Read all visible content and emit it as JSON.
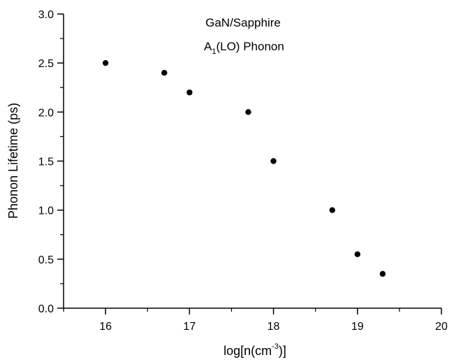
{
  "chart_data": {
    "type": "scatter",
    "title": "",
    "annotations": [
      {
        "text": "GaN/Sapphire"
      },
      {
        "main": "A",
        "sub": "1",
        "rest": "(LO) Phonon"
      }
    ],
    "xlabel": {
      "pre": "log[n(cm",
      "sup": "-3",
      "post": ")]"
    },
    "ylabel": "Phonon Lifetime (ps)",
    "xlim": [
      15.5,
      20
    ],
    "ylim": [
      0,
      3.0
    ],
    "x_ticks": [
      "16",
      "17",
      "18",
      "19",
      "20"
    ],
    "y_ticks": [
      "0.0",
      "0.5",
      "1.0",
      "1.5",
      "2.0",
      "2.5",
      "3.0"
    ],
    "grid": false,
    "marker_color": "#000000",
    "points": [
      {
        "x": 16.0,
        "y": 2.5
      },
      {
        "x": 16.7,
        "y": 2.4
      },
      {
        "x": 17.0,
        "y": 2.2
      },
      {
        "x": 17.7,
        "y": 2.0
      },
      {
        "x": 18.0,
        "y": 1.5
      },
      {
        "x": 18.7,
        "y": 1.0
      },
      {
        "x": 19.0,
        "y": 0.55
      },
      {
        "x": 19.3,
        "y": 0.35
      }
    ]
  }
}
